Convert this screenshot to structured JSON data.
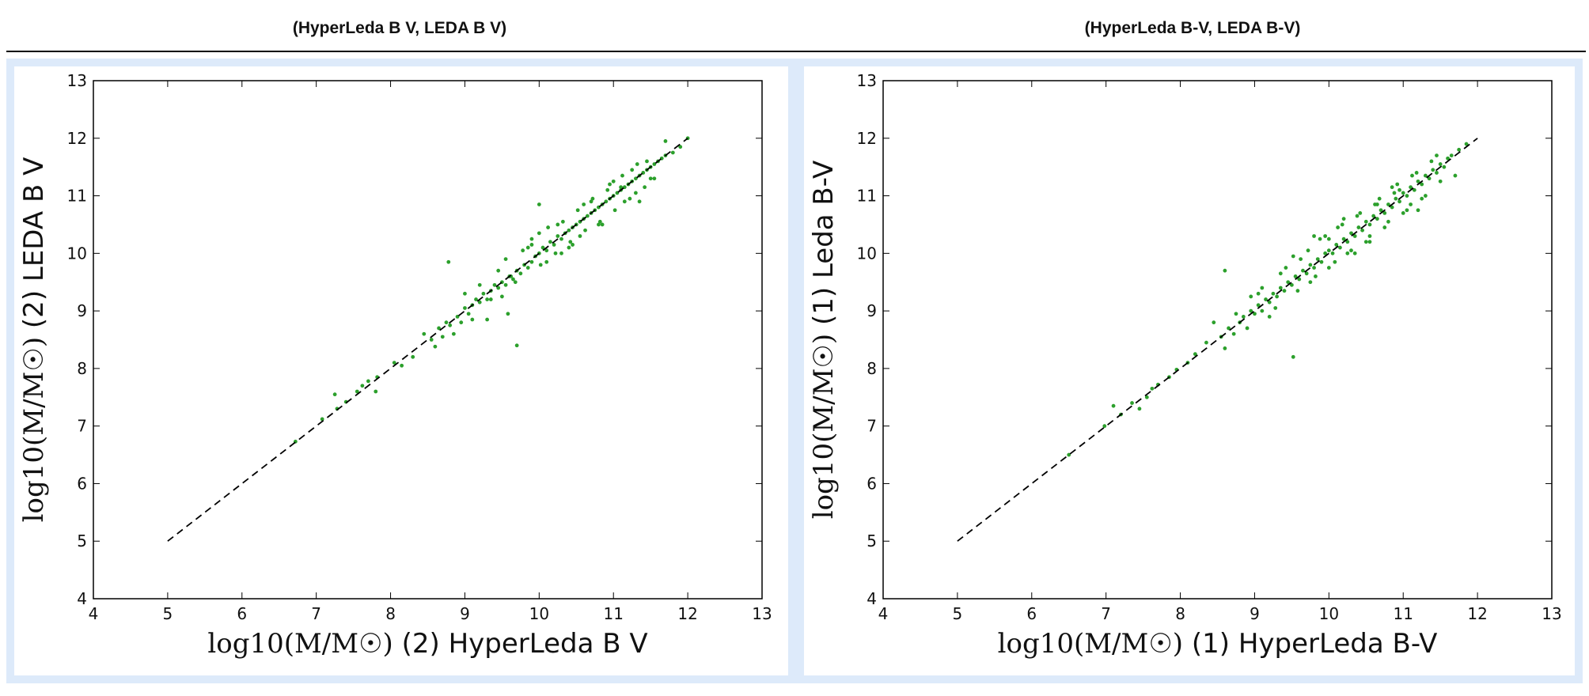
{
  "header": {
    "left_title": "(HyperLeda B V, LEDA B V)",
    "right_title": "(HyperLeda B-V, LEDA B-V)"
  },
  "colors": {
    "points": "#2ca02c",
    "line": "#000000",
    "panel_border": "#ddeafa"
  },
  "chart_data": [
    {
      "type": "scatter",
      "xlabel_math": "log10(M/M☉)",
      "xlabel_text": " (2) HyperLeda B V",
      "ylabel_math": "log10(M/M☉)",
      "ylabel_text": " (2) LEDA B V",
      "xlim": [
        4,
        13
      ],
      "ylim": [
        4,
        13
      ],
      "xticks": [
        4,
        5,
        6,
        7,
        8,
        9,
        10,
        11,
        12,
        13
      ],
      "yticks": [
        4,
        5,
        6,
        7,
        8,
        9,
        10,
        11,
        12,
        13
      ],
      "reference_line": {
        "x": [
          5,
          12
        ],
        "y": [
          5,
          12
        ],
        "style": "dashed"
      },
      "points": {
        "x": [
          6.72,
          7.08,
          7.25,
          7.28,
          7.4,
          7.55,
          7.62,
          7.7,
          7.8,
          7.82,
          8.05,
          8.15,
          8.3,
          8.45,
          8.55,
          8.6,
          8.65,
          8.7,
          8.75,
          8.8,
          8.85,
          8.9,
          8.95,
          9.0,
          9.05,
          9.1,
          9.15,
          9.2,
          9.25,
          9.3,
          9.35,
          9.4,
          9.45,
          9.5,
          9.55,
          9.6,
          9.65,
          9.7,
          9.75,
          9.8,
          9.85,
          9.9,
          9.95,
          10.0,
          10.05,
          10.1,
          10.15,
          10.2,
          10.25,
          10.3,
          10.35,
          10.4,
          10.45,
          10.5,
          10.55,
          10.6,
          10.65,
          10.7,
          10.75,
          10.8,
          10.85,
          10.9,
          10.95,
          11.0,
          11.05,
          11.1,
          11.15,
          11.2,
          11.25,
          11.3,
          11.35,
          11.4,
          11.45,
          11.5,
          11.55,
          11.6,
          11.65,
          11.7,
          11.8,
          11.9,
          12.0,
          9.2,
          9.35,
          9.5,
          9.62,
          9.7,
          9.85,
          10.0,
          10.1,
          10.25,
          10.4,
          10.55,
          10.7,
          10.85,
          11.0,
          11.15,
          11.3,
          11.45,
          11.55,
          9.0,
          9.1,
          9.3,
          9.45,
          9.55,
          9.68,
          9.78,
          9.9,
          10.02,
          10.12,
          10.22,
          10.32,
          10.42,
          10.52,
          10.62,
          10.72,
          10.82,
          10.92,
          11.02,
          11.12,
          11.22,
          11.32,
          11.42,
          8.78,
          9.58,
          9.9,
          10.3,
          10.6,
          10.95,
          11.25,
          11.5,
          11.7,
          10.0,
          10.45,
          10.8,
          11.1,
          11.35
        ],
        "y": [
          6.73,
          7.12,
          7.55,
          7.3,
          7.42,
          7.6,
          7.7,
          7.78,
          7.6,
          7.85,
          8.1,
          8.05,
          8.2,
          8.6,
          8.5,
          8.38,
          8.7,
          8.55,
          8.8,
          8.75,
          8.6,
          8.9,
          8.8,
          9.05,
          8.95,
          9.1,
          9.2,
          9.15,
          9.3,
          9.2,
          9.35,
          9.45,
          9.4,
          9.5,
          9.45,
          9.6,
          9.55,
          9.7,
          9.65,
          9.8,
          9.75,
          9.85,
          9.95,
          10.0,
          10.1,
          10.05,
          10.2,
          10.15,
          10.3,
          10.25,
          10.35,
          10.4,
          10.45,
          10.5,
          10.55,
          10.6,
          10.65,
          10.7,
          10.75,
          10.8,
          10.85,
          10.9,
          10.95,
          11.0,
          11.05,
          11.1,
          11.15,
          11.2,
          11.25,
          11.3,
          11.35,
          11.4,
          11.45,
          11.5,
          11.55,
          11.6,
          11.65,
          11.7,
          11.75,
          11.85,
          12.0,
          9.45,
          9.2,
          9.25,
          9.6,
          8.4,
          10.1,
          10.35,
          9.85,
          10.5,
          10.1,
          10.3,
          10.9,
          10.5,
          11.25,
          10.9,
          11.05,
          11.6,
          11.3,
          9.3,
          8.85,
          8.85,
          9.7,
          9.9,
          9.5,
          10.05,
          10.25,
          9.8,
          10.45,
          10.0,
          10.55,
          10.2,
          10.75,
          10.4,
          10.95,
          10.55,
          11.1,
          10.75,
          11.35,
          10.95,
          11.55,
          11.15,
          9.85,
          8.95,
          10.15,
          10.0,
          10.85,
          11.2,
          11.45,
          11.3,
          11.95,
          10.85,
          10.15,
          10.5,
          11.15,
          10.9
        ]
      }
    },
    {
      "type": "scatter",
      "xlabel_math": "log10(M/M☉)",
      "xlabel_text": " (1) HyperLeda B-V",
      "ylabel_math": "log10(M/M☉)",
      "ylabel_text": " (1) Leda B-V",
      "xlim": [
        4,
        13
      ],
      "ylim": [
        4,
        13
      ],
      "xticks": [
        4,
        5,
        6,
        7,
        8,
        9,
        10,
        11,
        12,
        13
      ],
      "yticks": [
        4,
        5,
        6,
        7,
        8,
        9,
        10,
        11,
        12,
        13
      ],
      "reference_line": {
        "x": [
          5,
          12
        ],
        "y": [
          5,
          12
        ],
        "style": "dashed"
      },
      "points": {
        "x": [
          6.5,
          6.98,
          7.1,
          7.2,
          7.35,
          7.45,
          7.55,
          7.62,
          7.7,
          7.85,
          7.95,
          8.1,
          8.2,
          8.35,
          8.45,
          8.55,
          8.6,
          8.65,
          8.72,
          8.8,
          8.85,
          8.9,
          8.95,
          9.0,
          9.05,
          9.1,
          9.15,
          9.2,
          9.25,
          9.3,
          9.35,
          9.4,
          9.45,
          9.5,
          9.55,
          9.6,
          9.65,
          9.7,
          9.75,
          9.8,
          9.85,
          9.9,
          9.95,
          10.0,
          10.05,
          10.1,
          10.15,
          10.2,
          10.25,
          10.3,
          10.35,
          10.4,
          10.45,
          10.5,
          10.55,
          10.6,
          10.65,
          10.7,
          10.75,
          10.8,
          10.85,
          10.9,
          10.95,
          11.0,
          11.05,
          11.1,
          11.15,
          11.2,
          11.25,
          11.3,
          11.35,
          11.4,
          11.45,
          11.5,
          11.55,
          11.6,
          11.65,
          11.75,
          11.85,
          9.05,
          9.2,
          9.35,
          9.52,
          9.62,
          9.75,
          9.88,
          10.0,
          10.12,
          10.25,
          10.38,
          10.5,
          10.62,
          10.75,
          10.88,
          11.0,
          11.12,
          11.25,
          11.38,
          8.75,
          8.95,
          9.1,
          9.28,
          9.42,
          9.58,
          9.72,
          9.82,
          9.95,
          10.08,
          10.18,
          10.3,
          10.42,
          10.55,
          10.68,
          10.8,
          10.92,
          11.05,
          11.18,
          11.3,
          11.45,
          8.6,
          9.52,
          9.8,
          10.0,
          10.35,
          10.65,
          10.95,
          11.2,
          11.5,
          11.7,
          10.2,
          10.55,
          10.85,
          11.1
        ],
        "y": [
          6.5,
          7.0,
          7.35,
          7.2,
          7.4,
          7.3,
          7.5,
          7.65,
          7.72,
          7.85,
          7.98,
          8.1,
          8.25,
          8.45,
          8.8,
          8.55,
          8.35,
          8.7,
          8.6,
          8.8,
          8.9,
          8.7,
          9.0,
          8.95,
          9.1,
          9.0,
          9.2,
          9.15,
          9.3,
          9.25,
          9.4,
          9.35,
          9.5,
          9.45,
          9.6,
          9.55,
          9.7,
          9.65,
          9.8,
          9.75,
          9.9,
          9.85,
          10.0,
          10.05,
          10.0,
          10.15,
          10.1,
          10.25,
          10.2,
          10.35,
          10.3,
          10.45,
          10.4,
          10.55,
          10.5,
          10.65,
          10.6,
          10.75,
          10.7,
          10.85,
          10.8,
          10.95,
          10.9,
          11.05,
          11.0,
          11.15,
          11.1,
          11.25,
          11.2,
          11.35,
          11.3,
          11.45,
          11.4,
          11.55,
          11.5,
          11.65,
          11.7,
          11.8,
          11.9,
          9.3,
          8.9,
          9.65,
          8.2,
          9.9,
          9.5,
          10.25,
          9.75,
          10.45,
          10.0,
          10.65,
          10.2,
          10.85,
          10.45,
          11.05,
          10.7,
          11.35,
          10.95,
          11.6,
          8.95,
          9.25,
          9.4,
          9.05,
          9.75,
          9.35,
          10.05,
          9.6,
          10.3,
          9.85,
          10.5,
          10.05,
          10.7,
          10.3,
          10.95,
          10.55,
          11.2,
          10.75,
          11.4,
          11.0,
          11.7,
          9.7,
          9.95,
          10.3,
          10.25,
          10.0,
          10.85,
          11.1,
          10.75,
          11.25,
          11.35,
          10.6,
          10.2,
          11.15,
          10.85
        ]
      }
    }
  ]
}
